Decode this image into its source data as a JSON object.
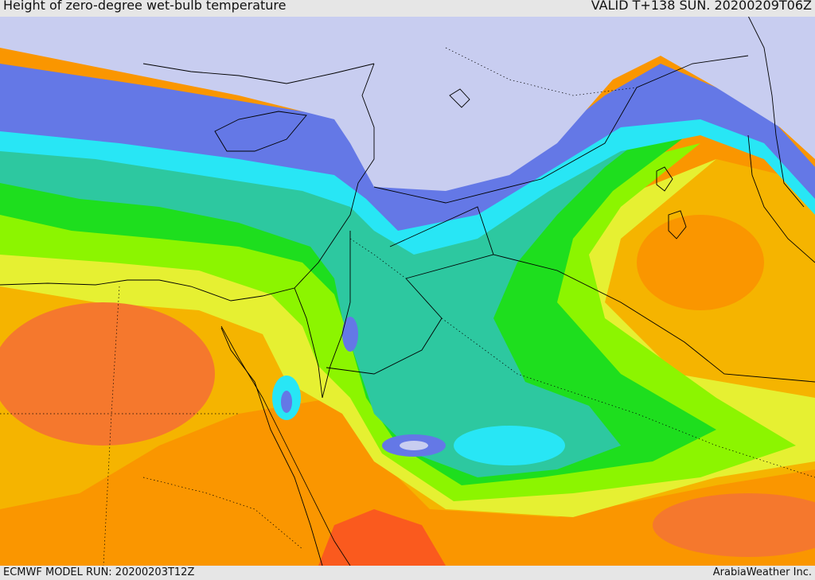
{
  "header": {
    "title": "Height of zero-degree wet-bulb temperature",
    "valid": "VALID T+138 SUN. 20200209T06Z"
  },
  "footer": {
    "model_run": "ECMWF MODEL RUN: 20200203T12Z",
    "credit": "ArabiaWeather Inc."
  },
  "palette": {
    "land_low": "#c8cdf0",
    "blue": "#6478e6",
    "cyan": "#28e6f5",
    "teal": "#2dc8a0",
    "green": "#1ede1e",
    "lime": "#8cf500",
    "yellow": "#e6f032",
    "amber": "#f5b400",
    "orange": "#fa9600",
    "dark_orange": "#f5782d",
    "red": "#fa5a1e",
    "border": "#000000"
  }
}
